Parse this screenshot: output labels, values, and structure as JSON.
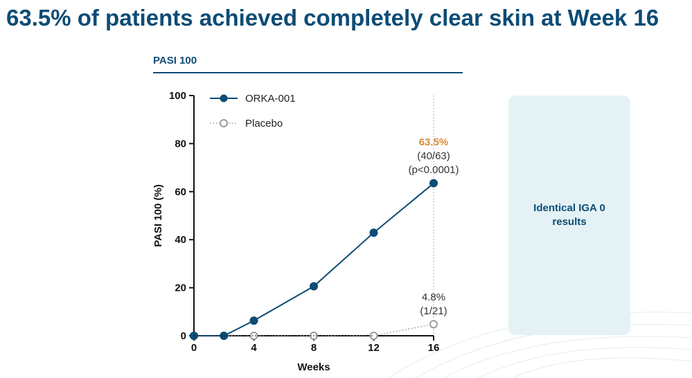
{
  "headline": "63.5% of patients achieved completely clear skin at Week 16",
  "panel_label": "PASI 100",
  "side_note": "Identical IGA 0 results",
  "colors": {
    "treatment": "#0d4c75",
    "placebo": "#9a9a9a",
    "highlight": "#d78a3b",
    "side_box": "#e4f2f6"
  },
  "chart_data": {
    "type": "line",
    "title": "PASI 100",
    "xlabel": "Weeks",
    "ylabel": "PASI 100 (%)",
    "xlim": [
      0,
      16
    ],
    "ylim": [
      0,
      100
    ],
    "x_ticks": [
      0,
      4,
      8,
      12,
      16
    ],
    "y_ticks": [
      0,
      20,
      40,
      60,
      80,
      100
    ],
    "legend_position": "top-left",
    "series": [
      {
        "name": "ORKA-001",
        "marker": "filled-circle",
        "line": "solid",
        "x": [
          0,
          2,
          4,
          8,
          12,
          16
        ],
        "y": [
          0,
          0,
          6.3,
          20.6,
          42.9,
          63.5
        ]
      },
      {
        "name": "Placebo",
        "marker": "open-circle",
        "line": "dotted",
        "x": [
          0,
          2,
          4,
          8,
          12,
          16
        ],
        "y": [
          0,
          0,
          0,
          0,
          0,
          4.8
        ]
      }
    ],
    "annotations": {
      "treatment_pct": "63.5%",
      "treatment_ratio": "(40/63)",
      "treatment_p": "(p<0.0001)",
      "placebo_pct": "4.8%",
      "placebo_ratio": "(1/21)"
    }
  }
}
